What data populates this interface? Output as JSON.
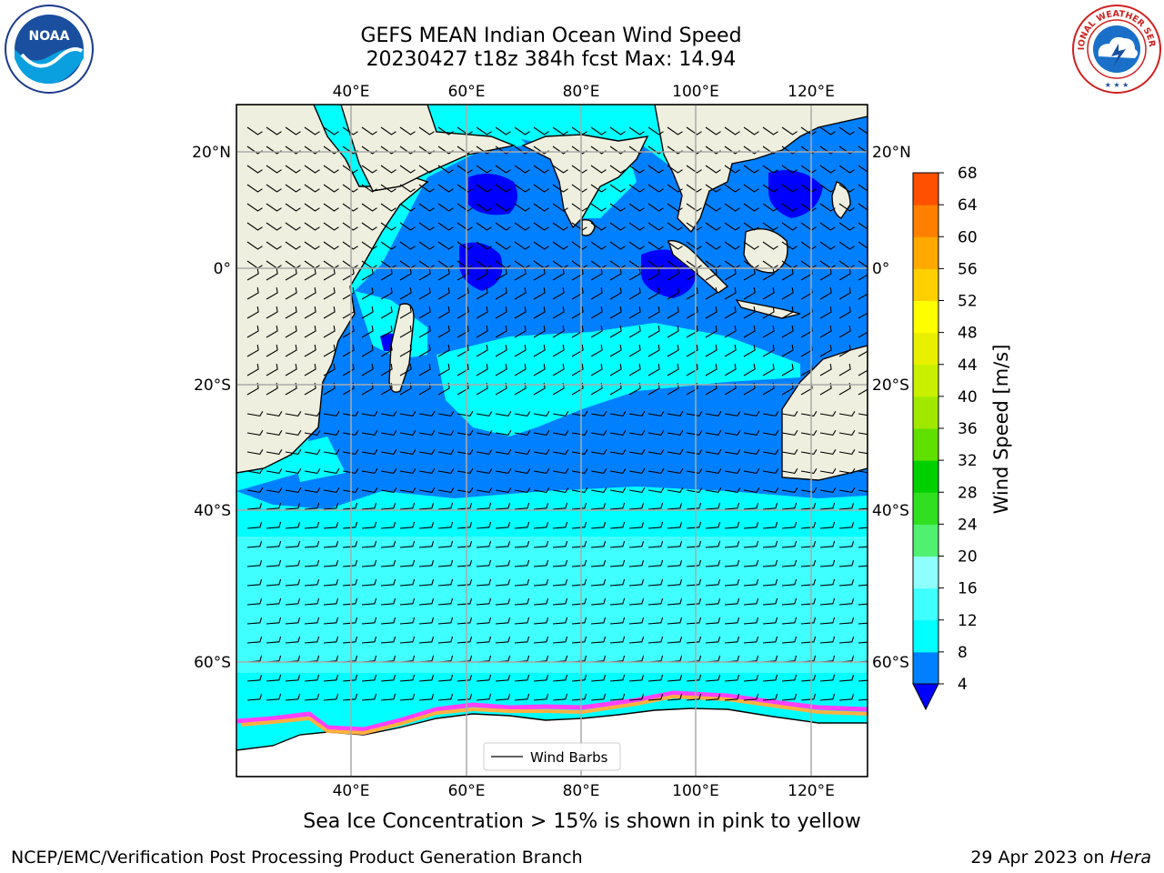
{
  "title": {
    "line1": "GEFS MEAN Indian Ocean Wind Speed",
    "line2": "20230427 t18z 384h fcst   Max: 14.94"
  },
  "logos": {
    "left": {
      "name": "noaa-logo",
      "text": "NOAA"
    },
    "right": {
      "name": "nws-logo",
      "text": "NATIONAL WEATHER SERVICE"
    }
  },
  "map": {
    "lon_ticks": [
      "40°E",
      "60°E",
      "80°E",
      "100°E",
      "120°E"
    ],
    "lat_ticks": [
      "20°N",
      "0°",
      "20°S",
      "40°S",
      "60°S"
    ],
    "legend_label": "Wind Barbs"
  },
  "colorbar": {
    "label": "Wind Speed [m/s]",
    "ticks": [
      "4",
      "8",
      "12",
      "16",
      "20",
      "24",
      "28",
      "32",
      "36",
      "40",
      "44",
      "48",
      "52",
      "56",
      "60",
      "64",
      "68"
    ],
    "colors": [
      "#0080ff",
      "#00ffff",
      "#40ffff",
      "#90ffff",
      "#50f070",
      "#30e020",
      "#00d000",
      "#60e000",
      "#a0e800",
      "#c8f000",
      "#e8f000",
      "#ffff00",
      "#ffd000",
      "#ffa800",
      "#ff8000",
      "#ff5000",
      "#ff2000",
      "#ff0000"
    ],
    "under_color": "#0000ff"
  },
  "colors": {
    "land": "#efefdf",
    "ocean_dark": "#0000ff",
    "ocean_blue": "#0080ff",
    "ocean_cyan": "#00ffff",
    "ocean_light": "#40ffff",
    "ice_pink": "#ff40ff",
    "ice_orange": "#ffb040"
  },
  "caption": "Sea Ice Concentration > 15% is shown in pink to yellow",
  "footer": {
    "branch": "NCEP/EMC/Verification Post Processing Product Generation Branch",
    "date": "29 Apr 2023 on ",
    "host": "Hera"
  }
}
